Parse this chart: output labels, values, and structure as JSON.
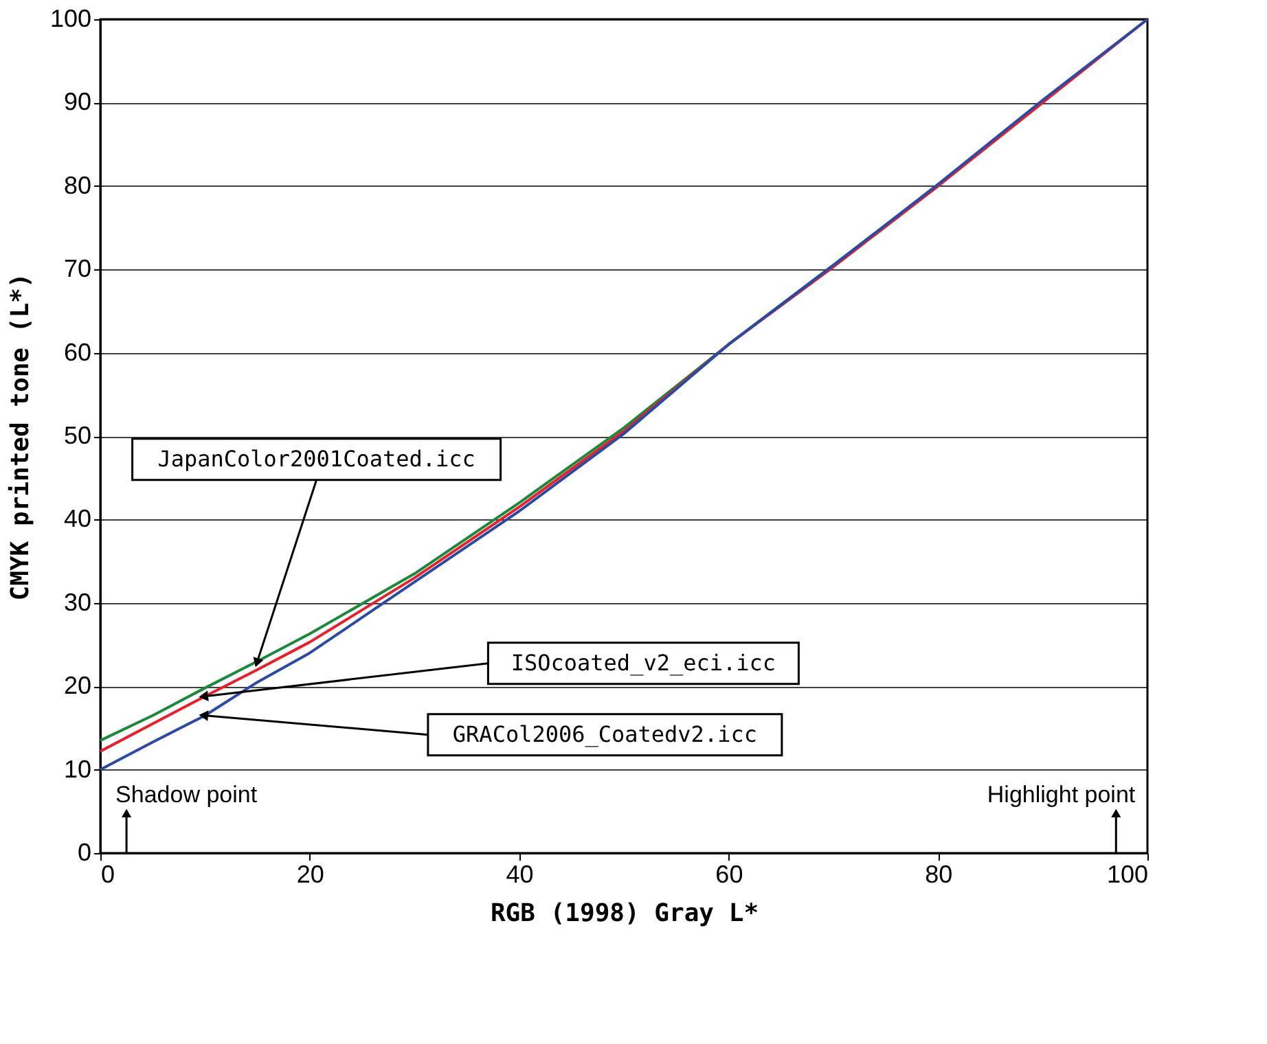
{
  "chart_data": {
    "type": "line",
    "xlabel": "RGB (1998) Gray L*",
    "ylabel": "CMYK printed tone (L*)",
    "xlim": [
      0,
      100
    ],
    "ylim": [
      0,
      100
    ],
    "xticks": [
      0,
      20,
      40,
      60,
      80,
      100
    ],
    "yticks": [
      0,
      10,
      20,
      30,
      40,
      50,
      60,
      70,
      80,
      90,
      100
    ],
    "grid": "y",
    "legend": false,
    "marker": "none",
    "line_style": "solid",
    "series": [
      {
        "name": "JapanColor2001Coated.icc",
        "color": "#1a8a3a",
        "x": [
          0,
          5,
          10,
          15,
          20,
          30,
          40,
          50,
          60,
          70,
          80
        ],
        "values": [
          13.5,
          16.5,
          19.8,
          23,
          26.3,
          33.5,
          42,
          51,
          61,
          70.5,
          80
        ]
      },
      {
        "name": "ISOcoated_v2_eci.icc",
        "color": "#e8202a",
        "x": [
          0,
          5,
          10,
          15,
          20,
          30,
          40,
          50,
          60,
          70,
          80,
          90,
          100
        ],
        "values": [
          12.2,
          15.5,
          18.8,
          22,
          25.3,
          33,
          41.5,
          50.6,
          61,
          70.3,
          80,
          90,
          100
        ]
      },
      {
        "name": "GRACol2006_Coatedv2.icc",
        "color": "#2a4aa8",
        "x": [
          0,
          5,
          10,
          15,
          20,
          30,
          40,
          50,
          60,
          70,
          80,
          90,
          100
        ],
        "values": [
          10,
          13.3,
          16.5,
          20.5,
          24,
          32.5,
          41,
          50.3,
          61,
          70.5,
          80.2,
          90.3,
          100
        ]
      }
    ],
    "annotations": [
      "Shadow point",
      "Highlight point"
    ]
  }
}
